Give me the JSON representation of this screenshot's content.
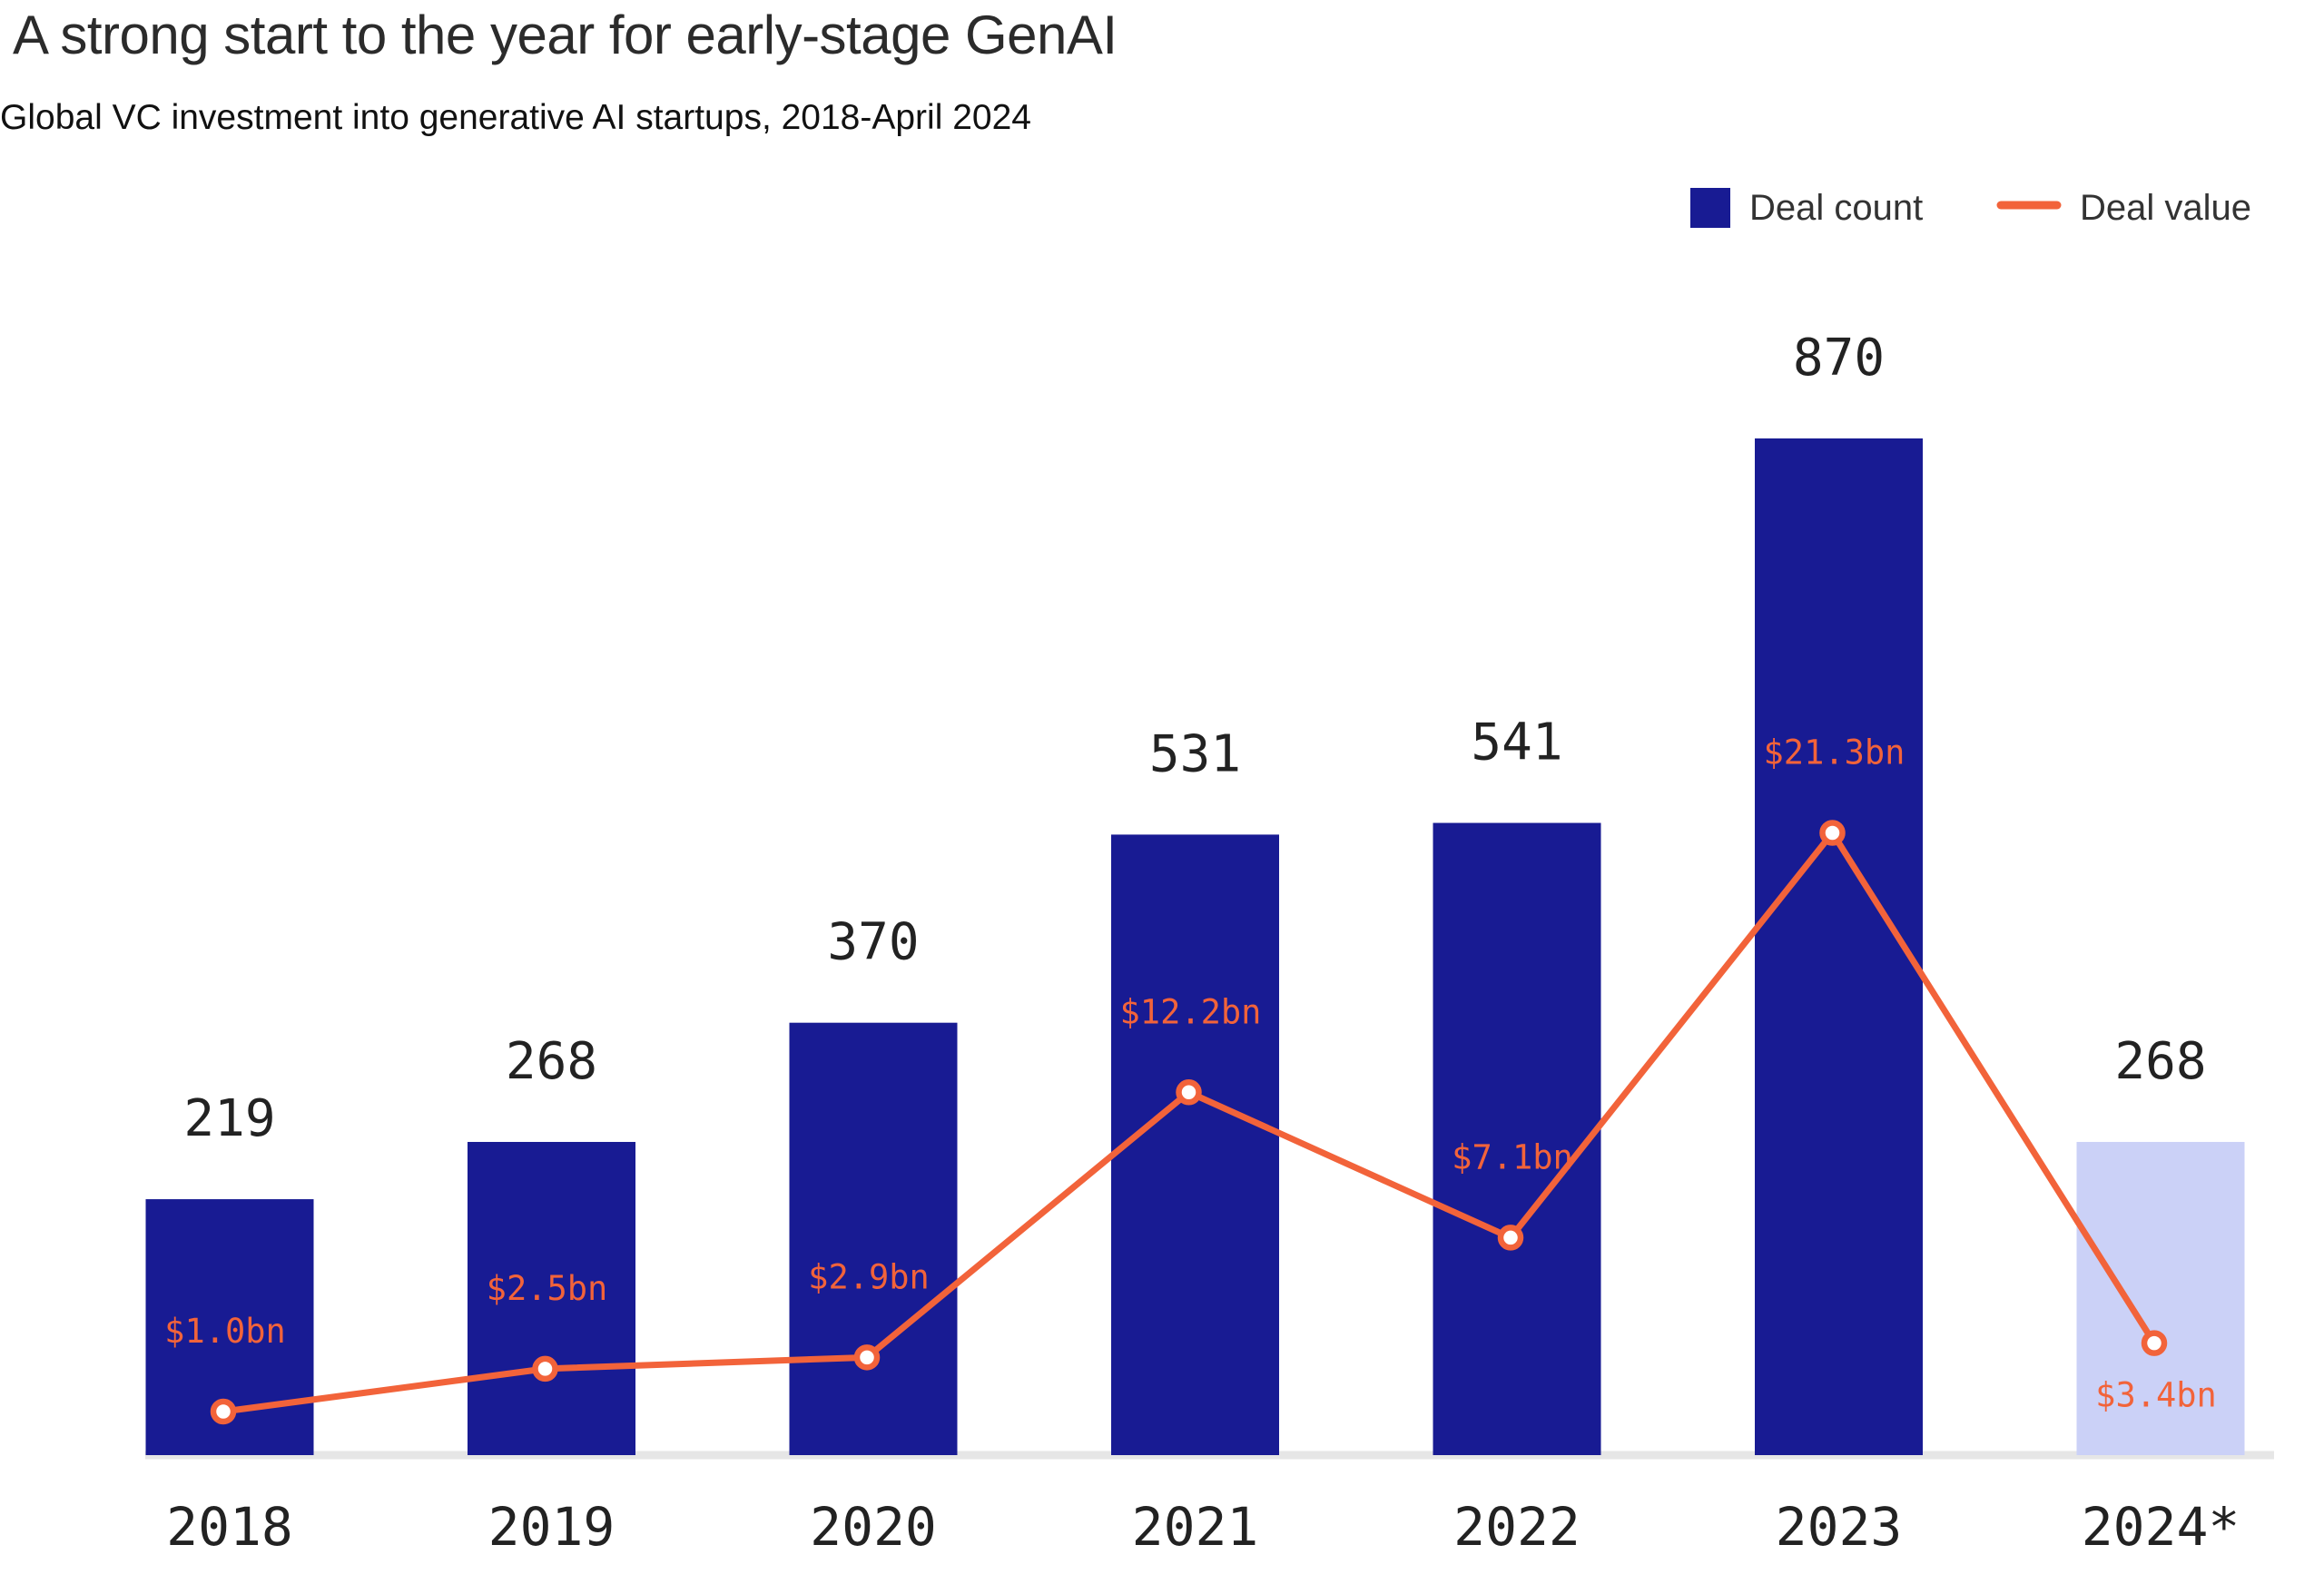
{
  "title": "A strong start to the year for early-stage GenAI",
  "subtitle": "Global VC investment into generative AI startups, 2018-April 2024",
  "colors": {
    "bar": "#181b93",
    "bar_partial": "#cbd1f7",
    "line": "#f2633a",
    "axis": "#e6e6e6"
  },
  "chart_data": {
    "type": "bar",
    "title": "A strong start to the year for early-stage GenAI",
    "subtitle": "Global VC investment into generative AI startups, 2018-April 2024",
    "categories": [
      "2018",
      "2019",
      "2020",
      "2021",
      "2022",
      "2023",
      "2024*"
    ],
    "legend": [
      "Deal count",
      "Deal value"
    ],
    "legend_position": "top-right",
    "grid": false,
    "series": [
      {
        "name": "Deal count",
        "type": "bar",
        "values": [
          219,
          268,
          370,
          531,
          541,
          870,
          268
        ],
        "labels": [
          "219",
          "268",
          "370",
          "531",
          "541",
          "870",
          "268"
        ],
        "partial": [
          false,
          false,
          false,
          false,
          false,
          false,
          true
        ]
      },
      {
        "name": "Deal value",
        "type": "line",
        "values": [
          1.0,
          2.5,
          2.9,
          12.2,
          7.1,
          21.3,
          3.4
        ],
        "labels": [
          "$1.0bn",
          "$2.5bn",
          "$2.9bn",
          "$12.2bn",
          "$7.1bn",
          "$21.3bn",
          "$3.4bn"
        ]
      }
    ]
  }
}
